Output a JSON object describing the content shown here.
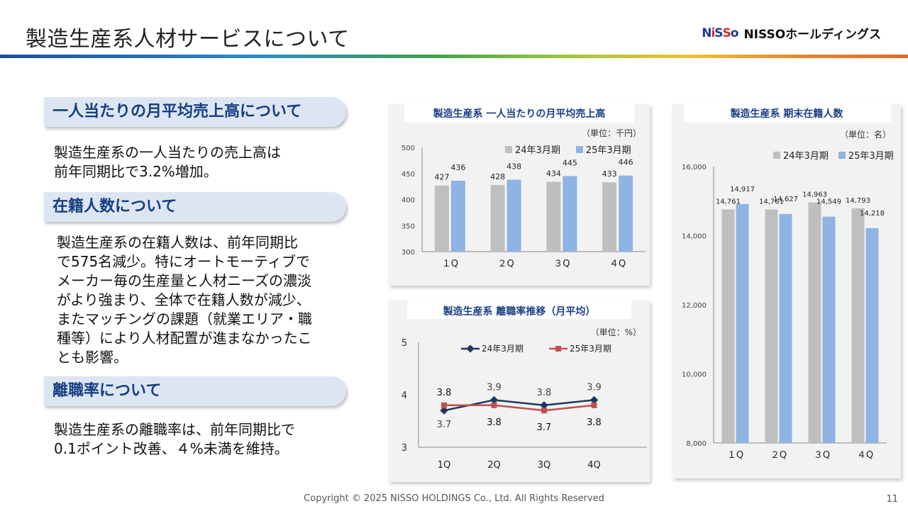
{
  "header": {
    "title": "製造生産系人材サービスについて",
    "brand_mark": "NiSSo",
    "brand_name": "NISSOホールディングス"
  },
  "sections": [
    {
      "heading": "一人当たりの月平均売上高について",
      "lines": [
        "製造生産系の一人当たりの売上高は",
        "前年同期比で3.2%増加。"
      ]
    },
    {
      "heading": "在籍人数について",
      "lines": [
        "製造生産系の在籍人数は、前年同期比",
        "で575名減少。特にオートモーティブで",
        "メーカー毎の生産量と人材ニーズの濃淡",
        "がより強まり、全体で在籍人数が減少、",
        "またマッチングの課題（就業エリア・職",
        "種等）により人材配置が進まなかったこ",
        "とも影響。"
      ]
    },
    {
      "heading": "離職率について",
      "lines": [
        "製造生産系の離職率は、前年同期比で",
        "0.1ポイント改善、４%未満を維持。"
      ]
    }
  ],
  "colors": {
    "gray_bar": "#bfbfbf",
    "blue_bar": "#8db4e2",
    "line_24": "#1f3864",
    "line_25": "#c0504d",
    "title": "#1b3f86"
  },
  "chart_data": [
    {
      "type": "bar",
      "title": "製造生産系 一人当たりの月平均売上高",
      "unit": "（単位：千円）",
      "categories": [
        "1Q",
        "2Q",
        "3Q",
        "4Q"
      ],
      "category_labels": [
        "１Q",
        "２Q",
        "３Q",
        "４Q"
      ],
      "series": [
        {
          "name": "24年3月期",
          "values": [
            427,
            428,
            434,
            433
          ]
        },
        {
          "name": "25年3月期",
          "values": [
            436,
            438,
            445,
            446
          ]
        }
      ],
      "ylim": [
        300,
        500
      ],
      "yticks": [
        "300",
        "350",
        "400",
        "450",
        "500"
      ],
      "legend": "top-right"
    },
    {
      "type": "line",
      "title": "製造生産系 離職率推移（月平均）",
      "unit": "（単位：%）",
      "categories": [
        "1Q",
        "2Q",
        "3Q",
        "4Q"
      ],
      "series": [
        {
          "name": "24年3月期",
          "values": [
            3.7,
            3.9,
            3.8,
            3.9
          ]
        },
        {
          "name": "25年3月期",
          "values": [
            3.8,
            3.8,
            3.7,
            3.8
          ]
        }
      ],
      "ylim": [
        3,
        5
      ],
      "yticks": [
        "3",
        "4",
        "5"
      ],
      "legend": "top"
    },
    {
      "type": "bar",
      "title": "製造生産系 期末在籍人数",
      "unit": "（単位：名）",
      "categories": [
        "1Q",
        "2Q",
        "3Q",
        "4Q"
      ],
      "category_labels": [
        "１Q",
        "２Q",
        "３Q",
        "４Q"
      ],
      "series": [
        {
          "name": "24年3月期",
          "values": [
            14761,
            14761,
            14963,
            14793
          ]
        },
        {
          "name": "25年3月期",
          "values": [
            14917,
            14627,
            14549,
            14218
          ]
        }
      ],
      "value_labels": [
        [
          "14,761",
          "14,761",
          "14,963",
          "14,793"
        ],
        [
          "14,917",
          "14,627",
          "14,549",
          "14,218"
        ]
      ],
      "ylim": [
        8000,
        16000
      ],
      "yticks": [
        "8,000",
        "10,000",
        "12,000",
        "14,000",
        "16,000"
      ],
      "legend": "top-right"
    }
  ],
  "footer": {
    "copyright": "Copyright © 2025 NISSO HOLDINGS Co., Ltd. All Rights Reserved",
    "page": "11"
  }
}
